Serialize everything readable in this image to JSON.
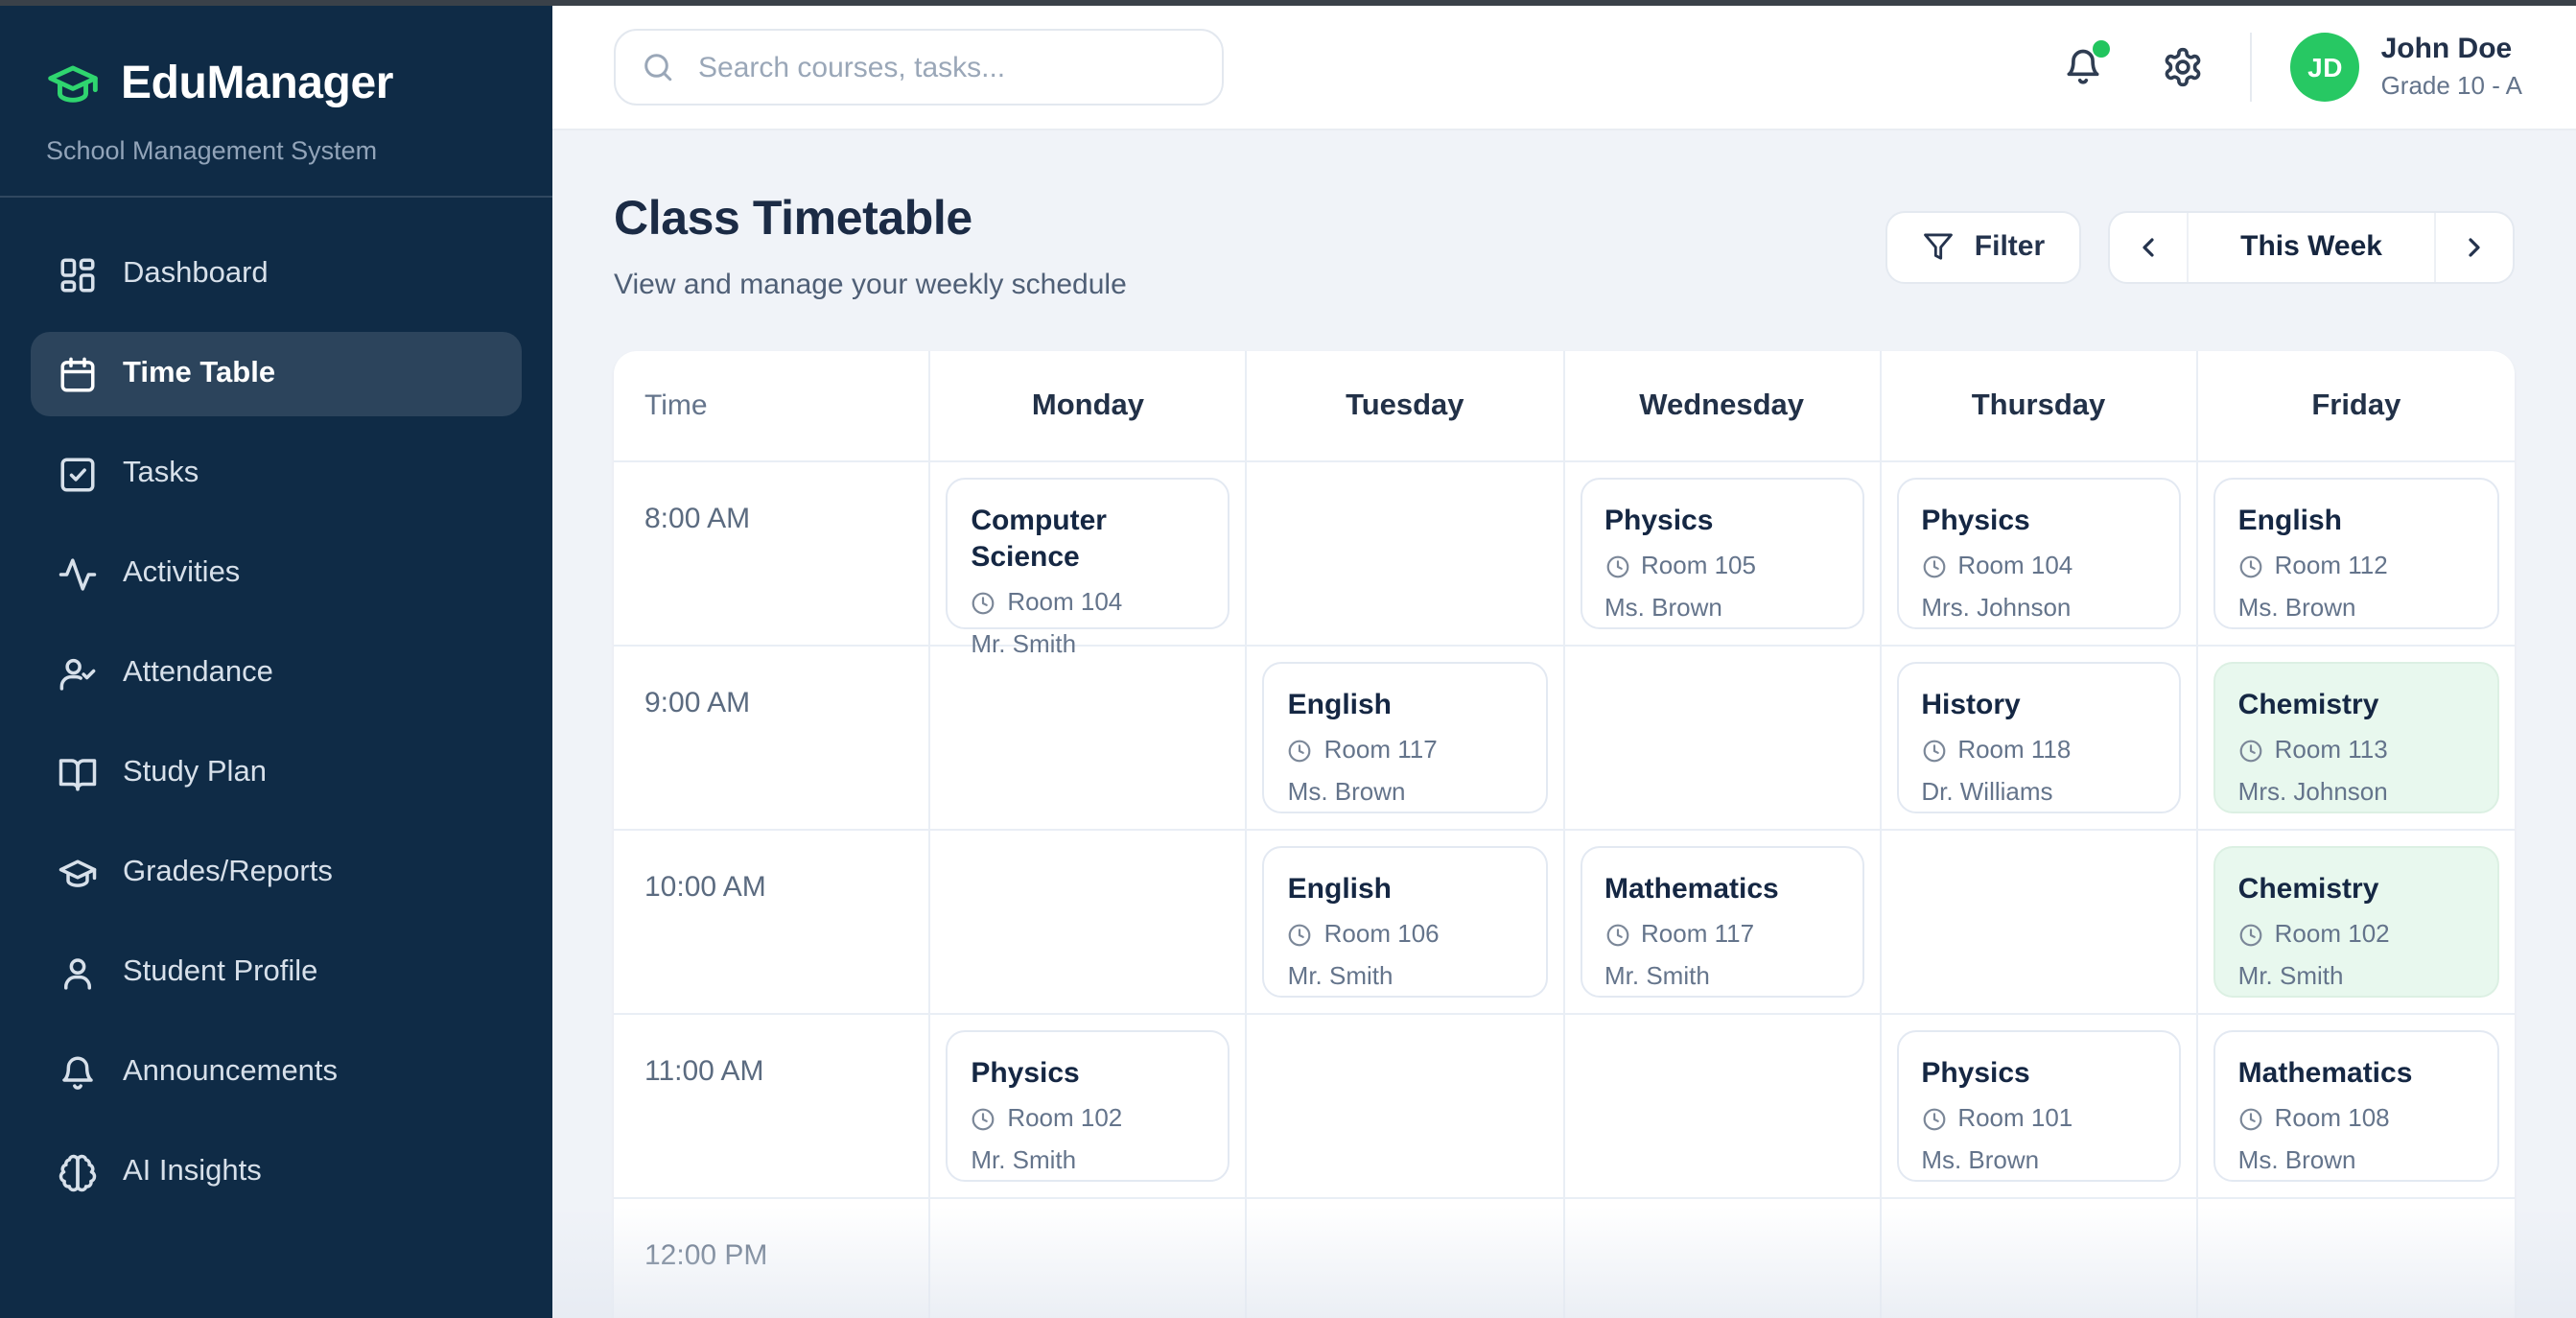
{
  "sidebar": {
    "brand": {
      "name": "EduManager",
      "subtitle": "School Management System"
    },
    "items": [
      {
        "label": "Dashboard",
        "icon": "dashboard",
        "active": false
      },
      {
        "label": "Time Table",
        "icon": "calendar",
        "active": true
      },
      {
        "label": "Tasks",
        "icon": "check-square",
        "active": false
      },
      {
        "label": "Activities",
        "icon": "activity",
        "active": false
      },
      {
        "label": "Attendance",
        "icon": "user-check",
        "active": false
      },
      {
        "label": "Study Plan",
        "icon": "book-open",
        "active": false
      },
      {
        "label": "Grades/Reports",
        "icon": "graduation-cap",
        "active": false
      },
      {
        "label": "Student Profile",
        "icon": "user",
        "active": false
      },
      {
        "label": "Announcements",
        "icon": "bell",
        "active": false
      },
      {
        "label": "AI Insights",
        "icon": "brain",
        "active": false
      }
    ]
  },
  "topbar": {
    "search_placeholder": "Search courses, tasks...",
    "user": {
      "initials": "JD",
      "name": "John Doe",
      "grade": "Grade 10 - A"
    }
  },
  "header": {
    "title": "Class Timetable",
    "subtitle": "View and manage your weekly schedule",
    "filter_label": "Filter",
    "week_label": "This Week"
  },
  "timetable": {
    "columns": [
      "Time",
      "Monday",
      "Tuesday",
      "Wednesday",
      "Thursday",
      "Friday"
    ],
    "rows": [
      {
        "time": "8:00 AM",
        "cells": [
          {
            "subject": "Computer Science",
            "room": "Room 104",
            "teacher": "Mr. Smith",
            "highlight": false
          },
          null,
          {
            "subject": "Physics",
            "room": "Room 105",
            "teacher": "Ms. Brown",
            "highlight": false
          },
          {
            "subject": "Physics",
            "room": "Room 104",
            "teacher": "Mrs. Johnson",
            "highlight": false
          },
          {
            "subject": "English",
            "room": "Room 112",
            "teacher": "Ms. Brown",
            "highlight": false
          }
        ]
      },
      {
        "time": "9:00 AM",
        "cells": [
          null,
          {
            "subject": "English",
            "room": "Room 117",
            "teacher": "Ms. Brown",
            "highlight": false
          },
          null,
          {
            "subject": "History",
            "room": "Room 118",
            "teacher": "Dr. Williams",
            "highlight": false
          },
          {
            "subject": "Chemistry",
            "room": "Room 113",
            "teacher": "Mrs. Johnson",
            "highlight": true
          }
        ]
      },
      {
        "time": "10:00 AM",
        "cells": [
          null,
          {
            "subject": "English",
            "room": "Room 106",
            "teacher": "Mr. Smith",
            "highlight": false
          },
          {
            "subject": "Mathematics",
            "room": "Room 117",
            "teacher": "Mr. Smith",
            "highlight": false
          },
          null,
          {
            "subject": "Chemistry",
            "room": "Room 102",
            "teacher": "Mr. Smith",
            "highlight": true
          }
        ]
      },
      {
        "time": "11:00 AM",
        "cells": [
          {
            "subject": "Physics",
            "room": "Room 102",
            "teacher": "Mr. Smith",
            "highlight": false
          },
          null,
          null,
          {
            "subject": "Physics",
            "room": "Room 101",
            "teacher": "Ms. Brown",
            "highlight": false
          },
          {
            "subject": "Mathematics",
            "room": "Room 108",
            "teacher": "Ms. Brown",
            "highlight": false
          }
        ]
      },
      {
        "time": "12:00 PM",
        "cells": [
          null,
          null,
          null,
          null,
          null
        ]
      }
    ]
  },
  "colors": {
    "sidebar_bg": "#0f2b46",
    "brand_green": "#2fd56f",
    "avatar_green": "#27c863",
    "notification_dot": "#22c55e",
    "main_bg": "#f0f3f8",
    "highlight_card_bg": "#e8f8ee",
    "card_border": "#e3e9f2",
    "title_text": "#1b2b45",
    "muted_text": "#64748b"
  }
}
